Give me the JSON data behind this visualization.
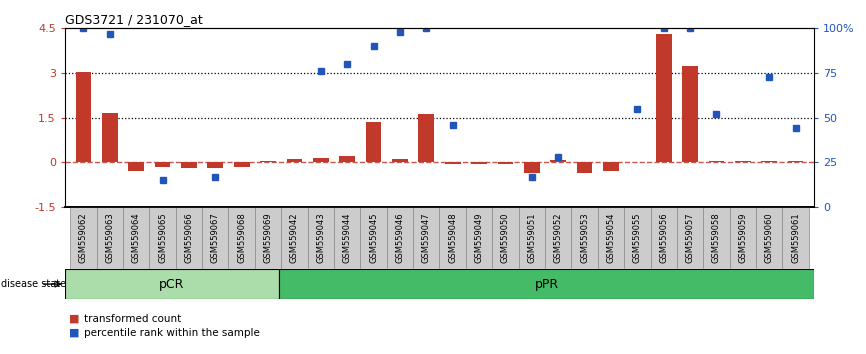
{
  "title": "GDS3721 / 231070_at",
  "samples": [
    "GSM559062",
    "GSM559063",
    "GSM559064",
    "GSM559065",
    "GSM559066",
    "GSM559067",
    "GSM559068",
    "GSM559069",
    "GSM559042",
    "GSM559043",
    "GSM559044",
    "GSM559045",
    "GSM559046",
    "GSM559047",
    "GSM559048",
    "GSM559049",
    "GSM559050",
    "GSM559051",
    "GSM559052",
    "GSM559053",
    "GSM559054",
    "GSM559055",
    "GSM559056",
    "GSM559057",
    "GSM559058",
    "GSM559059",
    "GSM559060",
    "GSM559061"
  ],
  "bar_values": [
    3.05,
    1.65,
    -0.3,
    -0.15,
    -0.2,
    -0.2,
    -0.15,
    0.05,
    0.1,
    0.15,
    0.2,
    1.35,
    0.1,
    1.62,
    -0.05,
    -0.05,
    -0.05,
    -0.35,
    0.08,
    -0.35,
    -0.3,
    0.0,
    4.3,
    3.25,
    0.05,
    0.05,
    0.05,
    0.05
  ],
  "blue_pct": [
    100,
    97,
    null,
    15,
    null,
    17,
    null,
    null,
    null,
    76,
    80,
    90,
    98,
    100,
    46,
    null,
    null,
    17,
    28,
    null,
    null,
    55,
    100,
    100,
    52,
    null,
    73,
    44
  ],
  "pCR_count": 8,
  "ylim": [
    -1.5,
    4.5
  ],
  "y2lim": [
    0,
    100
  ],
  "yticks_left": [
    -1.5,
    0.0,
    1.5,
    3.0,
    4.5
  ],
  "ytick_labels_left": [
    "-1.5",
    "0",
    "1.5",
    "3",
    "4.5"
  ],
  "yticks_right": [
    0,
    25,
    50,
    75,
    100
  ],
  "ytick_labels_right": [
    "0",
    "25",
    "50",
    "75",
    "100%"
  ],
  "hlines": [
    3.0,
    1.5
  ],
  "bar_color": "#c0392b",
  "blue_color": "#2255bb",
  "zero_line_color": "#c0392b",
  "pCR_color": "#aaddaa",
  "pPR_color": "#44bb66",
  "pCR_label": "pCR",
  "pPR_label": "pPR",
  "legend_items": [
    "transformed count",
    "percentile rank within the sample"
  ],
  "disease_state_label": "disease state"
}
